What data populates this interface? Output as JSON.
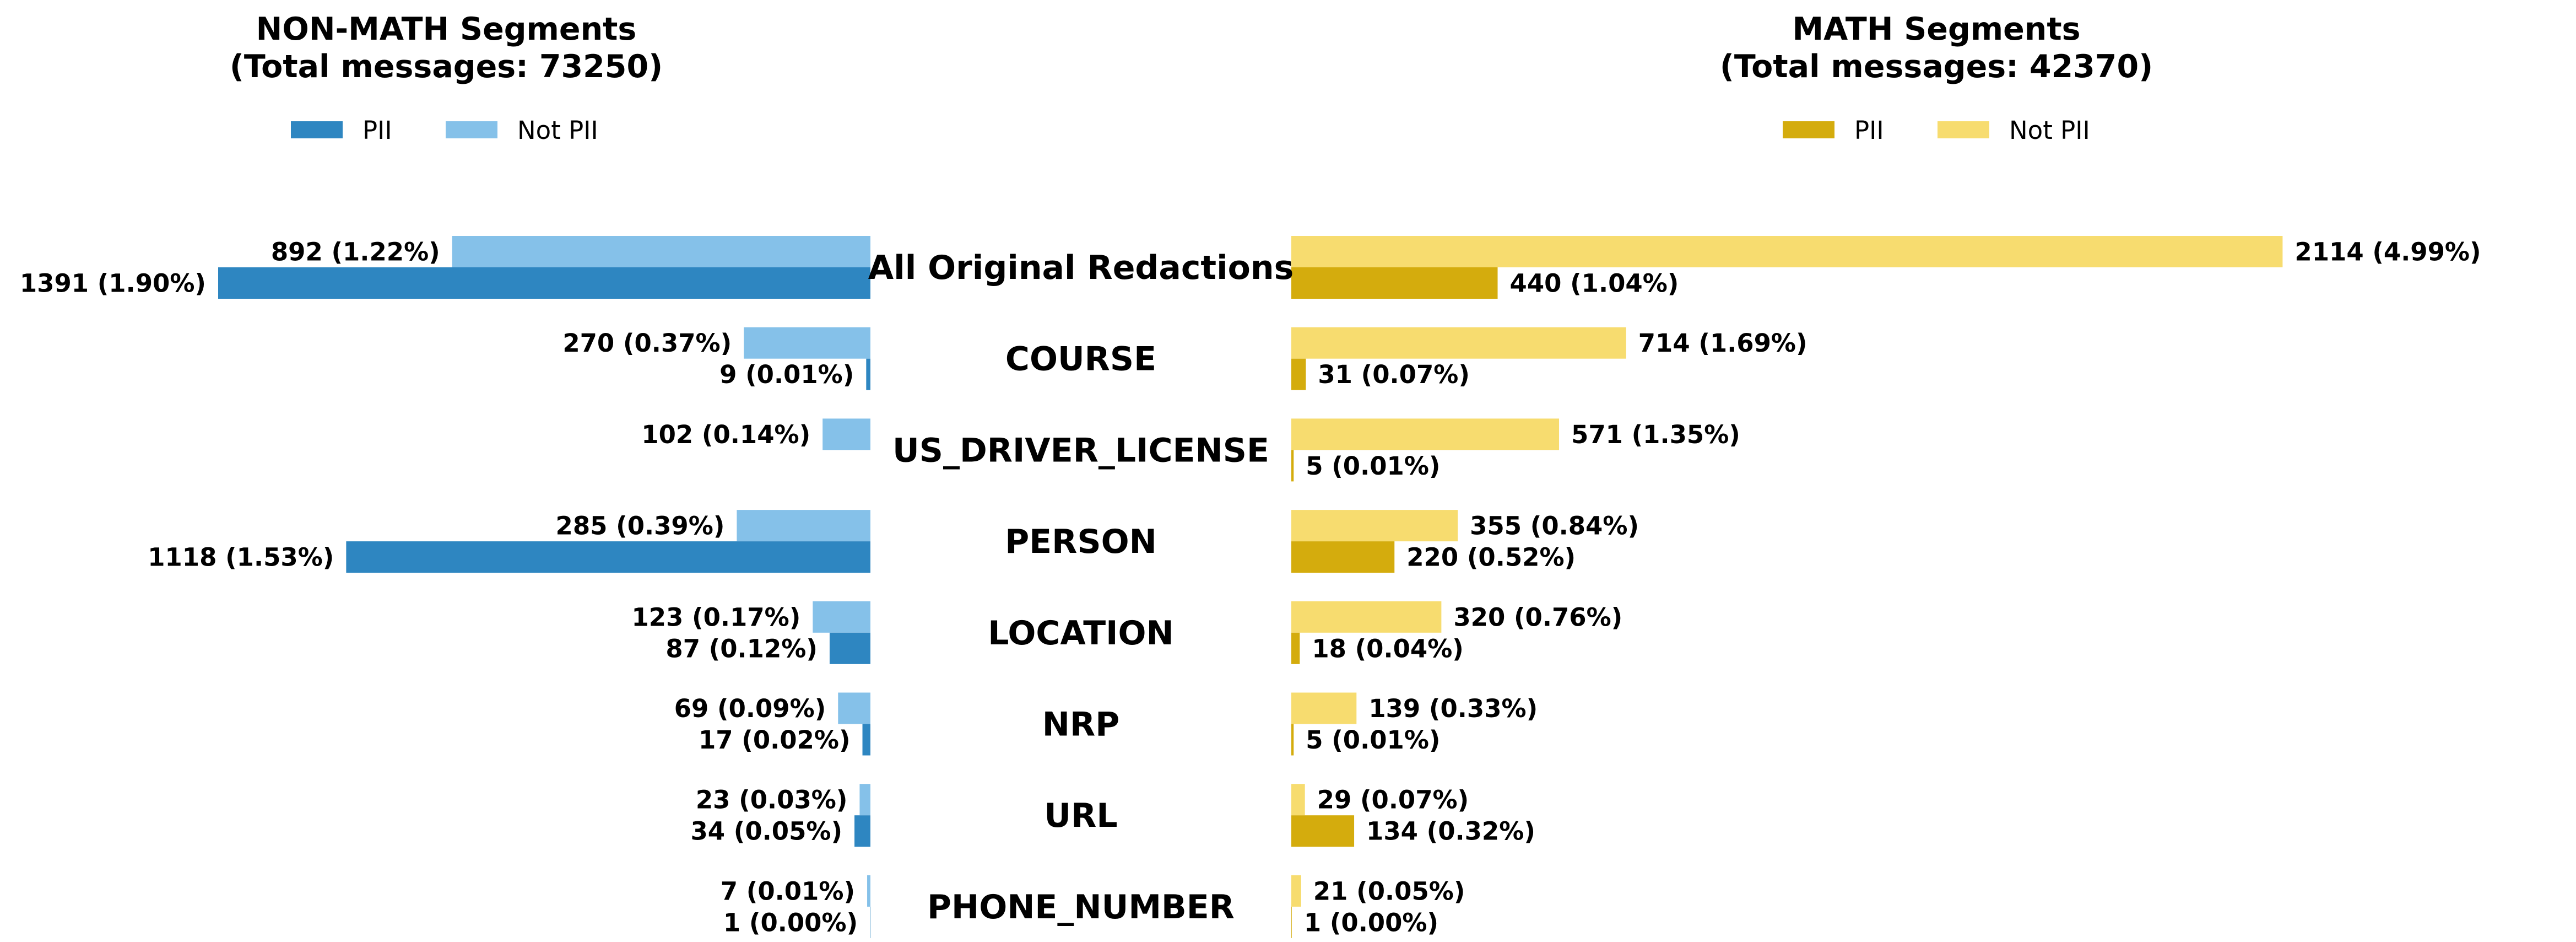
{
  "chart_data": [
    {
      "type": "bar",
      "orientation": "horizontal",
      "title": "NON-MATH Segments\n(Total messages: 73250)",
      "categories": [
        "All Original Redactions",
        "COURSE",
        "US_DRIVER_LICENSE",
        "PERSON",
        "LOCATION",
        "NRP",
        "URL",
        "PHONE_NUMBER"
      ],
      "series": [
        {
          "name": "PII",
          "color": "#2e86c1",
          "values": [
            1391,
            9,
            0,
            1118,
            87,
            17,
            34,
            1
          ],
          "labels": [
            "1391 (1.90%)",
            "9 (0.01%)",
            "",
            "1118 (1.53%)",
            "87 (0.12%)",
            "17 (0.02%)",
            "34 (0.05%)",
            "1 (0.00%)"
          ]
        },
        {
          "name": "Not PII",
          "color": "#85c1e9",
          "values": [
            892,
            270,
            102,
            285,
            123,
            69,
            23,
            7
          ],
          "labels": [
            "892 (1.22%)",
            "270 (0.37%)",
            "102 (0.14%)",
            "285 (0.39%)",
            "123 (0.17%)",
            "69 (0.09%)",
            "23 (0.03%)",
            "7 (0.01%)"
          ]
        }
      ],
      "legend_position": "top",
      "grid": false
    },
    {
      "type": "bar",
      "orientation": "horizontal",
      "title": "MATH Segments\n(Total messages: 42370)",
      "categories": [
        "All Original Redactions",
        "COURSE",
        "US_DRIVER_LICENSE",
        "PERSON",
        "LOCATION",
        "NRP",
        "URL",
        "PHONE_NUMBER"
      ],
      "series": [
        {
          "name": "PII",
          "color": "#d4ac0d",
          "values": [
            440,
            31,
            5,
            220,
            18,
            5,
            134,
            1
          ],
          "labels": [
            "440 (1.04%)",
            "31 (0.07%)",
            "5 (0.01%)",
            "220 (0.52%)",
            "18 (0.04%)",
            "5 (0.01%)",
            "134 (0.32%)",
            "1 (0.00%)"
          ]
        },
        {
          "name": "Not PII",
          "color": "#f7dc6f",
          "values": [
            2114,
            714,
            571,
            355,
            320,
            139,
            29,
            21
          ],
          "labels": [
            "2114 (4.99%)",
            "714 (1.69%)",
            "571 (1.35%)",
            "355 (0.84%)",
            "320 (0.76%)",
            "139 (0.33%)",
            "29 (0.07%)",
            "21 (0.05%)"
          ]
        }
      ],
      "legend_position": "top",
      "grid": false
    }
  ]
}
